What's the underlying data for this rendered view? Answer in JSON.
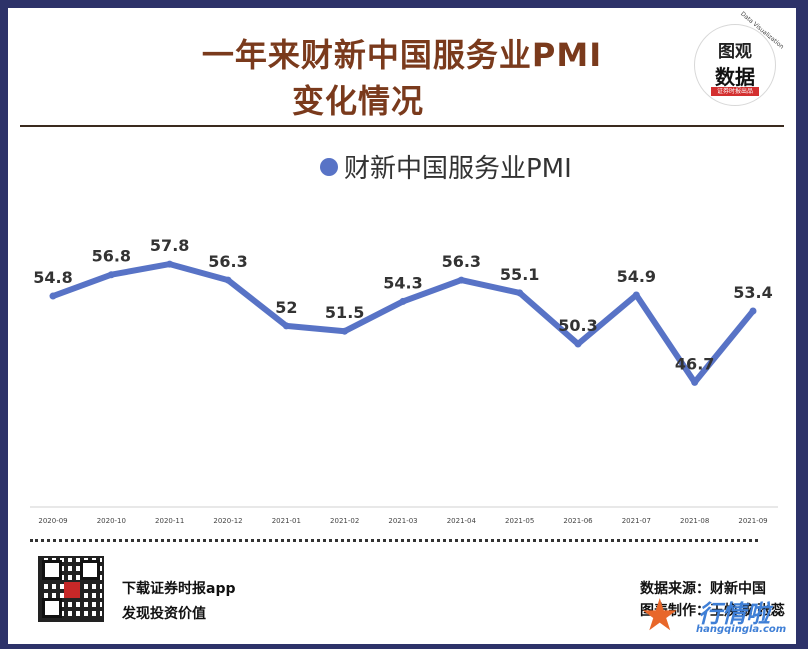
{
  "header": {
    "title_line1": "一年来财新中国服务业PMI",
    "title_line2": "变化情况"
  },
  "logo": {
    "line1": "图观",
    "line2": "数据",
    "tag": "证券时报出品",
    "arc_text": "Data Visualization"
  },
  "footer": {
    "app_line1": "下载证券时报app",
    "app_line2": "发现投资价值",
    "source": "数据来源：财新中国",
    "credit": "图表制作：王焕城 张蕊"
  },
  "watermark": {
    "big": "行情啦",
    "small": "hangqingla.com"
  },
  "colors": {
    "series": "#5873c6",
    "title": "#7a3a1c",
    "frame": "#2d3269"
  },
  "chart_data": {
    "type": "line",
    "title": "一年来财新中国服务业PMI 变化情况",
    "categories": [
      "2020-09",
      "2020-10",
      "2020-11",
      "2020-12",
      "2021-01",
      "2021-02",
      "2021-03",
      "2021-04",
      "2021-05",
      "2021-06",
      "2021-07",
      "2021-08",
      "2021-09"
    ],
    "series": [
      {
        "name": "财新中国服务业PMI",
        "values": [
          54.8,
          56.8,
          57.8,
          56.3,
          52,
          51.5,
          54.3,
          56.3,
          55.1,
          50.3,
          54.9,
          46.7,
          53.4
        ],
        "labels": [
          "54.8",
          "56.8",
          "57.8",
          "56.3",
          "52",
          "51.5",
          "54.3",
          "56.3",
          "55.1",
          "50.3",
          "54.9",
          "46.7",
          "53.4"
        ]
      }
    ],
    "legend_position": "top-center",
    "grid": false,
    "ylim": [
      35,
      61
    ]
  }
}
